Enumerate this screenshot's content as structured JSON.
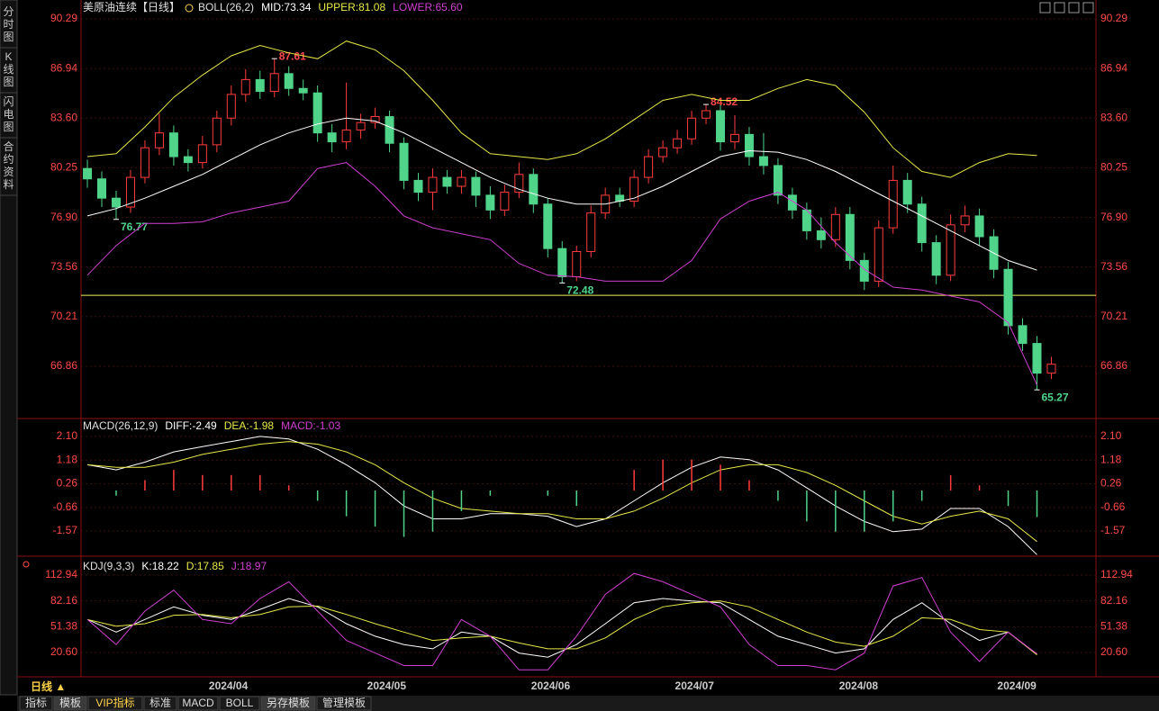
{
  "sidebar": [
    "分时图",
    "K线图",
    "闪电图",
    "合约资料"
  ],
  "period_button": "日线 ▲",
  "toolbar": [
    "指标",
    "模板",
    "VIP指标",
    "标准",
    "MACD",
    "BOLL",
    "另存模板",
    "管理模板"
  ],
  "chart_data": [
    {
      "type": "candlestick",
      "title": "美原油连续【日线】",
      "indicator": "BOLL(26,2)",
      "up_color": "#ff3c3c",
      "down_color": "#4fd48a",
      "open": [
        80.2,
        79.5,
        78.2,
        77.6,
        79.6,
        81.6,
        82.6,
        81.0,
        80.6,
        81.8,
        83.6,
        85.2,
        86.2,
        85.4,
        86.6,
        85.6,
        85.3,
        82.6,
        82.0,
        82.8,
        83.3,
        83.7,
        81.9,
        79.4,
        78.6,
        79.6,
        79.0,
        79.6,
        78.4,
        77.4,
        78.6,
        79.8,
        77.8,
        74.8,
        72.9,
        74.6,
        77.2,
        78.4,
        78.0,
        79.6,
        81.0,
        81.6,
        82.2,
        83.6,
        84.1,
        82.0,
        82.5,
        81.0,
        80.4,
        78.4,
        77.4,
        76.0,
        75.4,
        77.1,
        74.0,
        72.6,
        76.2,
        79.4,
        77.8,
        75.2,
        73.0,
        76.4,
        77.0,
        75.6,
        73.4,
        69.6,
        68.4,
        66.4
      ],
      "high": [
        80.8,
        80.0,
        78.7,
        80.1,
        82.1,
        83.9,
        83.1,
        81.5,
        82.4,
        84.1,
        85.8,
        86.9,
        86.8,
        87.61,
        87.1,
        86.2,
        85.8,
        83.2,
        86.0,
        83.9,
        84.3,
        84.1,
        82.3,
        79.9,
        80.2,
        80.1,
        80.1,
        80.0,
        79.0,
        79.1,
        80.6,
        80.2,
        78.2,
        75.3,
        75.0,
        77.7,
        78.9,
        78.9,
        80.1,
        81.5,
        82.1,
        82.8,
        84.1,
        84.52,
        84.5,
        83.8,
        83.0,
        82.6,
        80.9,
        78.9,
        77.9,
        76.9,
        77.6,
        77.6,
        74.5,
        76.7,
        80.4,
        79.9,
        78.3,
        75.7,
        77.1,
        77.7,
        77.5,
        76.1,
        73.9,
        70.1,
        68.9,
        67.5
      ],
      "low": [
        78.9,
        77.6,
        76.77,
        77.2,
        79.2,
        81.1,
        80.4,
        80.0,
        80.2,
        81.3,
        83.1,
        84.7,
        84.9,
        85.0,
        85.1,
        84.8,
        82.0,
        81.3,
        81.5,
        82.2,
        82.9,
        81.3,
        78.8,
        78.0,
        77.4,
        78.5,
        78.5,
        77.6,
        76.8,
        77.0,
        78.2,
        77.2,
        74.2,
        72.48,
        72.6,
        74.2,
        76.8,
        77.6,
        77.6,
        79.2,
        80.6,
        81.2,
        81.8,
        83.2,
        81.4,
        81.5,
        80.4,
        79.8,
        77.8,
        76.8,
        75.4,
        74.8,
        74.9,
        73.4,
        72.0,
        72.2,
        75.8,
        77.2,
        74.6,
        72.4,
        72.6,
        75.9,
        75.0,
        72.8,
        69.0,
        67.9,
        65.27,
        66.0
      ],
      "close": [
        79.5,
        78.2,
        77.6,
        79.6,
        81.6,
        82.6,
        81.0,
        80.6,
        81.8,
        83.6,
        85.2,
        86.2,
        85.4,
        86.6,
        85.6,
        85.3,
        82.6,
        82.0,
        82.8,
        83.3,
        83.7,
        81.9,
        79.4,
        78.6,
        79.6,
        79.0,
        79.6,
        78.4,
        77.4,
        78.6,
        79.8,
        77.8,
        74.8,
        72.9,
        74.6,
        77.2,
        78.4,
        78.0,
        79.6,
        81.0,
        81.6,
        82.2,
        83.6,
        84.1,
        82.0,
        82.5,
        81.0,
        80.4,
        78.4,
        77.4,
        76.0,
        75.4,
        77.1,
        74.0,
        72.6,
        76.2,
        79.4,
        77.8,
        75.2,
        73.0,
        76.4,
        77.0,
        75.6,
        73.4,
        69.6,
        68.4,
        66.4,
        67.0
      ],
      "series": [
        {
          "name": "MID:73.34",
          "color": "#ffffff",
          "values": [
            77.0,
            77.5,
            78.2,
            79.0,
            79.8,
            80.8,
            81.8,
            82.6,
            83.2,
            83.6,
            83.4,
            82.6,
            81.6,
            80.6,
            79.6,
            78.8,
            78.2,
            77.8,
            77.8,
            78.2,
            79.0,
            80.0,
            81.0,
            81.4,
            81.3,
            80.8,
            80.0,
            79.0,
            78.0,
            77.0,
            76.0,
            75.0,
            74.0,
            73.34
          ]
        },
        {
          "name": "UPPER:81.08",
          "color": "#e8e84a",
          "values": [
            81.0,
            81.2,
            83.0,
            85.0,
            86.5,
            87.8,
            88.5,
            88.0,
            87.6,
            88.8,
            88.2,
            86.8,
            84.8,
            82.6,
            81.2,
            81.0,
            80.8,
            81.2,
            82.2,
            83.5,
            84.8,
            85.2,
            84.8,
            84.8,
            85.6,
            86.2,
            85.8,
            84.0,
            81.6,
            80.0,
            79.6,
            80.6,
            81.2,
            81.08
          ]
        },
        {
          "name": "LOWER:65.60",
          "color": "#d040d0",
          "values": [
            73.0,
            75.0,
            76.5,
            76.5,
            76.6,
            77.2,
            77.6,
            78.0,
            80.2,
            80.6,
            79.0,
            77.0,
            76.2,
            75.8,
            75.4,
            73.8,
            73.0,
            72.9,
            72.6,
            72.6,
            72.6,
            74.0,
            76.8,
            78.0,
            78.6,
            77.4,
            75.2,
            73.4,
            72.2,
            72.0,
            71.6,
            71.2,
            69.8,
            65.6
          ]
        }
      ],
      "hline": {
        "value": 71.65,
        "color": "#f0f060"
      },
      "annotations": [
        {
          "x": 13,
          "y": 87.61,
          "color": "#ff4a4a"
        },
        {
          "x": 43,
          "y": 84.52,
          "color": "#ff4a4a"
        },
        {
          "x": 2,
          "y": 76.77,
          "color": "#4fd48a"
        },
        {
          "x": 33,
          "y": 72.48,
          "color": "#4fd48a"
        },
        {
          "x": 66,
          "y": 65.27,
          "color": "#4fd48a"
        }
      ],
      "ylim": [
        63.52,
        91.08
      ],
      "yticks": [
        90.29,
        86.94,
        {
          "value": 83.6,
          "label": "83.60"
        },
        80.25,
        {
          "value": 76.9,
          "label": "76.90"
        },
        73.56,
        70.21,
        66.86
      ],
      "xlim": [
        -0.44,
        70.1
      ],
      "xticks": [
        {
          "value": 9.8,
          "label": "2024/04"
        },
        {
          "value": 20.8,
          "label": "2024/05"
        },
        {
          "value": 32.2,
          "label": "2024/06"
        },
        {
          "value": 42.2,
          "label": "2024/07"
        },
        {
          "value": 53.6,
          "label": "2024/08"
        },
        {
          "value": 64.6,
          "label": "2024/09"
        }
      ]
    },
    {
      "type": "macd",
      "title": "MACD(26,12,9)",
      "up_color": "#ff3c3c",
      "down_color": "#4fd48a",
      "series": [
        {
          "name": "DIFF:-2.49",
          "color": "#ffffff",
          "values": [
            1.0,
            0.8,
            1.1,
            1.5,
            1.7,
            1.9,
            2.1,
            2.0,
            1.6,
            1.0,
            0.3,
            -0.6,
            -1.1,
            -1.1,
            -0.9,
            -0.9,
            -1.0,
            -1.4,
            -1.1,
            -0.4,
            0.3,
            0.9,
            1.3,
            1.2,
            0.8,
            0.1,
            -0.6,
            -1.2,
            -1.6,
            -1.5,
            -0.7,
            -0.7,
            -1.4,
            -2.49
          ]
        },
        {
          "name": "DEA:-1.98",
          "color": "#e8e84a",
          "values": [
            1.0,
            0.9,
            0.9,
            1.1,
            1.4,
            1.6,
            1.8,
            1.9,
            1.8,
            1.5,
            1.0,
            0.3,
            -0.3,
            -0.7,
            -0.8,
            -0.9,
            -0.9,
            -1.1,
            -1.1,
            -0.8,
            -0.3,
            0.3,
            0.8,
            1.0,
            1.0,
            0.7,
            0.2,
            -0.4,
            -1.0,
            -1.3,
            -1.0,
            -0.8,
            -1.1,
            -1.98
          ]
        },
        {
          "name": "MACD:-1.03",
          "color": "#d040d0",
          "bars": true,
          "values": [
            0.0,
            -0.2,
            0.4,
            0.8,
            0.6,
            0.6,
            0.6,
            0.2,
            -0.4,
            -1.0,
            -1.4,
            -1.8,
            -1.6,
            -0.8,
            -0.2,
            0.0,
            -0.2,
            -0.6,
            0.0,
            0.8,
            1.2,
            1.2,
            1.0,
            0.4,
            -0.4,
            -1.2,
            -1.6,
            -1.6,
            -1.2,
            -0.4,
            0.6,
            0.2,
            -0.6,
            -1.03
          ]
        }
      ],
      "ylim": [
        -2.55,
        2.76
      ],
      "yticks": [
        {
          "value": 2.1,
          "label": "2.10"
        },
        1.18,
        0.26,
        -0.66,
        -1.57
      ]
    },
    {
      "type": "kdj",
      "title": "KDJ(9,3,3)",
      "series": [
        {
          "name": "K:18.22",
          "color": "#ffffff",
          "values": [
            60,
            45,
            60,
            75,
            65,
            60,
            72,
            85,
            75,
            55,
            40,
            30,
            25,
            45,
            40,
            20,
            15,
            30,
            55,
            80,
            85,
            82,
            80,
            60,
            40,
            30,
            20,
            25,
            60,
            80,
            55,
            35,
            45,
            18.22
          ]
        },
        {
          "name": "D:17.85",
          "color": "#e8e84a",
          "values": [
            60,
            52,
            55,
            65,
            66,
            62,
            66,
            75,
            76,
            66,
            55,
            45,
            35,
            38,
            40,
            32,
            25,
            25,
            38,
            60,
            75,
            80,
            82,
            75,
            60,
            45,
            33,
            28,
            40,
            62,
            60,
            48,
            45,
            17.85
          ]
        },
        {
          "name": "J:18.97",
          "color": "#d040d0",
          "values": [
            60,
            30,
            70,
            95,
            60,
            55,
            85,
            105,
            70,
            35,
            20,
            5,
            5,
            60,
            40,
            0,
            0,
            40,
            90,
            115,
            105,
            90,
            75,
            30,
            5,
            5,
            0,
            20,
            100,
            110,
            45,
            10,
            45,
            18.97
          ]
        }
      ],
      "ylim": [
        -6.25,
        131.2
      ],
      "yticks": [
        112.94,
        82.16,
        51.38,
        {
          "value": 20.6,
          "label": "20.60"
        }
      ]
    }
  ]
}
